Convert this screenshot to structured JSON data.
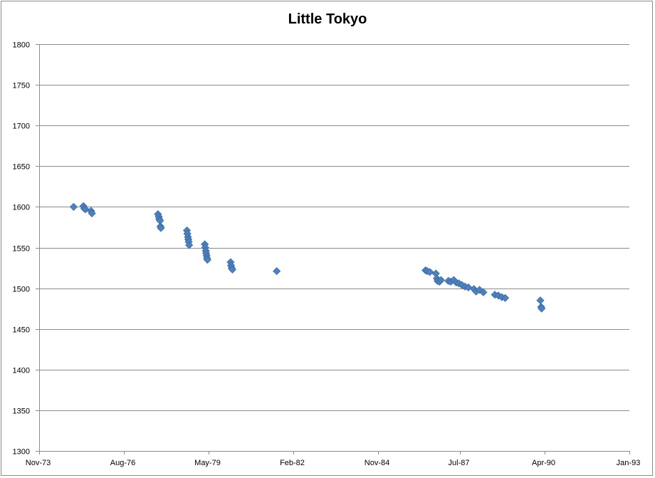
{
  "chart_data": {
    "type": "scatter",
    "title": "Little Tokyo",
    "xlabel": "",
    "ylabel": "",
    "x_axis": {
      "type": "date",
      "min": "1973-11-01",
      "max": "1993-01-01",
      "tick_dates": [
        "1973-11-01",
        "1976-08-01",
        "1979-05-01",
        "1982-02-01",
        "1984-11-01",
        "1987-07-01",
        "1990-04-01",
        "1993-01-01"
      ],
      "tick_labels": [
        "Nov-73",
        "Aug-76",
        "May-79",
        "Feb-82",
        "Nov-84",
        "Jul-87",
        "Apr-90",
        "Jan-93"
      ]
    },
    "y_axis": {
      "min": 1300,
      "max": 1800,
      "step": 50,
      "tick_labels": [
        "1300",
        "1350",
        "1400",
        "1450",
        "1500",
        "1550",
        "1600",
        "1650",
        "1700",
        "1750",
        "1800"
      ]
    },
    "grid": {
      "horizontal": true,
      "vertical": false
    },
    "legend": "none",
    "marker": {
      "shape": "diamond",
      "color": "#4f81bd",
      "edge": "#3a6a9e"
    },
    "points": [
      [
        "1974-12-15",
        1600
      ],
      [
        "1975-04-10",
        1601
      ],
      [
        "1975-04-20",
        1598
      ],
      [
        "1975-05-05",
        1597
      ],
      [
        "1975-07-10",
        1595
      ],
      [
        "1975-07-20",
        1592
      ],
      [
        "1977-09-10",
        1591
      ],
      [
        "1977-09-20",
        1588
      ],
      [
        "1977-09-25",
        1585
      ],
      [
        "1977-10-05",
        1583
      ],
      [
        "1977-10-10",
        1576
      ],
      [
        "1977-10-15",
        1574
      ],
      [
        "1978-08-20",
        1571
      ],
      [
        "1978-08-25",
        1567
      ],
      [
        "1978-09-01",
        1563
      ],
      [
        "1978-09-05",
        1560
      ],
      [
        "1978-09-10",
        1557
      ],
      [
        "1978-09-15",
        1553
      ],
      [
        "1979-03-20",
        1554
      ],
      [
        "1979-03-25",
        1550
      ],
      [
        "1979-04-01",
        1546
      ],
      [
        "1979-04-05",
        1543
      ],
      [
        "1979-04-10",
        1540
      ],
      [
        "1979-04-15",
        1537
      ],
      [
        "1979-04-20",
        1535
      ],
      [
        "1980-01-20",
        1532
      ],
      [
        "1980-01-25",
        1528
      ],
      [
        "1980-02-01",
        1525
      ],
      [
        "1980-02-10",
        1523
      ],
      [
        "1981-07-20",
        1521
      ],
      [
        "1986-05-20",
        1522
      ],
      [
        "1986-06-10",
        1521
      ],
      [
        "1986-07-10",
        1520
      ],
      [
        "1986-09-20",
        1518
      ],
      [
        "1986-10-01",
        1512
      ],
      [
        "1986-10-10",
        1509
      ],
      [
        "1986-11-01",
        1508
      ],
      [
        "1986-11-20",
        1510
      ],
      [
        "1987-02-15",
        1509
      ],
      [
        "1987-03-15",
        1508
      ],
      [
        "1987-04-20",
        1510
      ],
      [
        "1987-05-20",
        1507
      ],
      [
        "1987-06-20",
        1506
      ],
      [
        "1987-07-25",
        1504
      ],
      [
        "1987-09-01",
        1502
      ],
      [
        "1987-10-10",
        1501
      ],
      [
        "1987-12-15",
        1499
      ],
      [
        "1988-01-10",
        1496
      ],
      [
        "1988-02-20",
        1498
      ],
      [
        "1988-04-05",
        1495
      ],
      [
        "1988-08-20",
        1492
      ],
      [
        "1988-10-01",
        1491
      ],
      [
        "1988-11-10",
        1489
      ],
      [
        "1988-12-20",
        1488
      ],
      [
        "1990-02-10",
        1485
      ],
      [
        "1990-02-20",
        1477
      ],
      [
        "1990-02-25",
        1475
      ]
    ]
  }
}
